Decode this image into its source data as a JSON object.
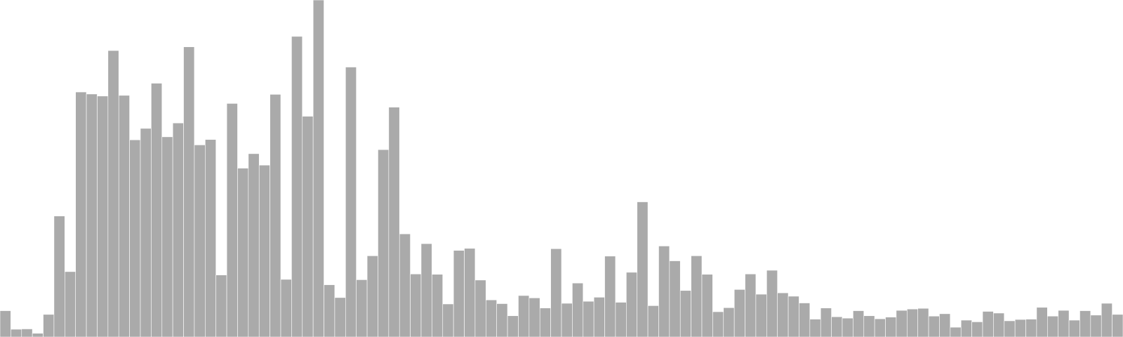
{
  "chart_data": {
    "type": "bar",
    "title": "",
    "xlabel": "",
    "ylabel": "",
    "grid": false,
    "legend": "none",
    "ylim": [
      0,
      100
    ],
    "bar_color": "#aaaaaa",
    "values": [
      7.8,
      2.3,
      2.4,
      1.1,
      6.7,
      35.9,
      19.4,
      72.7,
      72.1,
      71.5,
      85.0,
      71.7,
      58.5,
      61.9,
      75.3,
      59.4,
      63.5,
      86.1,
      57.0,
      58.6,
      18.4,
      69.3,
      50.1,
      54.4,
      51.0,
      72.0,
      17.1,
      89.2,
      65.5,
      100.0,
      15.5,
      11.7,
      80.1,
      17.0,
      24.1,
      55.6,
      68.2,
      30.6,
      18.7,
      27.7,
      18.6,
      9.8,
      25.7,
      26.3,
      16.9,
      11.0,
      9.9,
      6.3,
      12.3,
      11.6,
      8.6,
      26.2,
      10.0,
      16.0,
      10.6,
      11.8,
      24.0,
      10.3,
      19.2,
      40.1,
      9.3,
      27.0,
      22.6,
      13.8,
      24.1,
      18.6,
      7.5,
      8.7,
      14.1,
      18.7,
      12.7,
      19.8,
      13.1,
      12.1,
      10.1,
      5.3,
      8.6,
      6.0,
      5.6,
      7.8,
      6.3,
      5.4,
      5.9,
      7.9,
      8.3,
      8.5,
      6.2,
      6.9,
      2.9,
      5.0,
      4.5,
      7.6,
      7.1,
      4.8,
      5.2,
      5.3,
      8.8,
      6.2,
      7.9,
      5.0,
      7.8,
      6.5,
      10.0,
      6.7
    ]
  }
}
